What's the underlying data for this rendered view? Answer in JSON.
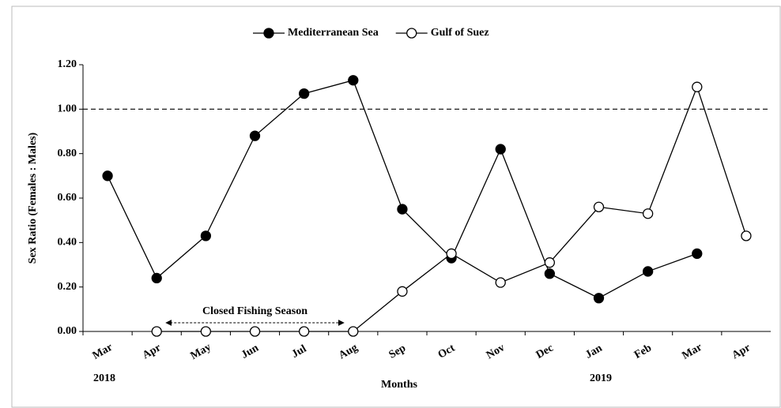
{
  "chart_data": {
    "type": "line",
    "y_label": "Sex Ratio (Females : Males)",
    "x_label": "Months",
    "categories": [
      "Mar",
      "Apr",
      "May",
      "Jun",
      "Jul",
      "Aug",
      "Sep",
      "Oct",
      "Nov",
      "Dec",
      "Jan",
      "Feb",
      "Mar",
      "Apr"
    ],
    "year_labels": [
      "2018",
      "2019"
    ],
    "series": [
      {
        "name": "Mediterranean Sea",
        "color": "#000000",
        "marker_fill": "#000000",
        "values": [
          0.7,
          0.24,
          0.43,
          0.88,
          1.07,
          1.13,
          0.55,
          0.33,
          0.82,
          0.26,
          0.15,
          0.27,
          0.35,
          null
        ]
      },
      {
        "name": "Gulf of Suez",
        "color": "#000000",
        "marker_fill": "#ffffff",
        "values": [
          null,
          0,
          0,
          0,
          0,
          0,
          0.18,
          0.35,
          0.22,
          0.31,
          0.56,
          0.53,
          1.1,
          0.43
        ]
      }
    ],
    "ylim": [
      0,
      1.2
    ],
    "yticks": [
      {
        "value": 0,
        "label": "0.00"
      },
      {
        "value": 0.2,
        "label": "0.20"
      },
      {
        "value": 0.4,
        "label": "0.40"
      },
      {
        "value": 0.6,
        "label": "0.60"
      },
      {
        "value": 0.8,
        "label": "0.80"
      },
      {
        "value": 1.0,
        "label": "1.00"
      },
      {
        "value": 1.2,
        "label": "1.20"
      }
    ],
    "reference_line": 1.0,
    "annotation": "Closed Fishing Season",
    "legend": "top"
  }
}
